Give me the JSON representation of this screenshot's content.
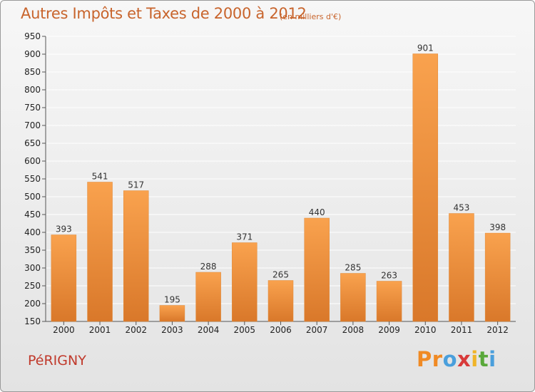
{
  "header": {
    "title": "Autres Impôts et Taxes de 2000 à 2012",
    "subtitle": "(en milliers d'€)"
  },
  "footer": {
    "commune": "PéRIGNY",
    "logo": [
      "P",
      "r",
      "o",
      "x",
      "i",
      "t",
      "i"
    ]
  },
  "colors": {
    "title": "#c8642c",
    "commune": "#c0392b",
    "bar_top": "#f9a24e",
    "bar_bottom": "#d9782a",
    "grid": "#ffffff",
    "logo": [
      "#f08a24",
      "#f08a24",
      "#4a9fdc",
      "#d83a3a",
      "#f0b428",
      "#59a83a",
      "#4a9fdc"
    ]
  },
  "chart_data": {
    "type": "bar",
    "title": "Autres Impôts et Taxes de 2000 à 2012",
    "subtitle": "(en milliers d'€)",
    "categories": [
      "2000",
      "2001",
      "2002",
      "2003",
      "2004",
      "2005",
      "2006",
      "2007",
      "2008",
      "2009",
      "2010",
      "2011",
      "2012"
    ],
    "values": [
      393,
      541,
      517,
      195,
      288,
      371,
      265,
      440,
      285,
      263,
      901,
      453,
      398
    ],
    "ylim": [
      150,
      950
    ],
    "yticks": [
      150,
      200,
      250,
      300,
      350,
      400,
      450,
      500,
      550,
      600,
      650,
      700,
      750,
      800,
      850,
      900,
      950
    ],
    "grid": true,
    "data_labels": true
  }
}
